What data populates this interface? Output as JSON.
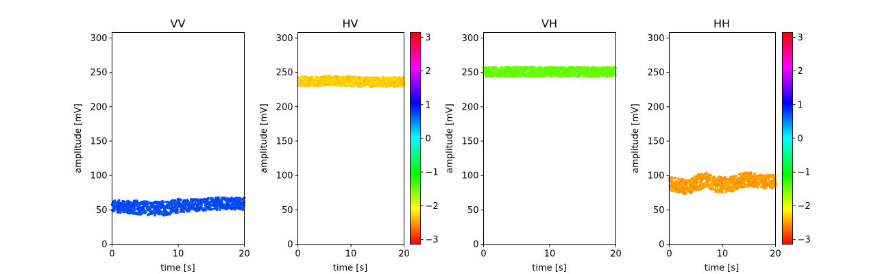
{
  "chart_data": [
    {
      "type": "scatter",
      "title": "VV",
      "xlabel": "time [s]",
      "ylabel": "amplitude [mV]",
      "xlim": [
        0,
        20
      ],
      "ylim": [
        0,
        308
      ],
      "xticks": [
        "0",
        "10",
        "20"
      ],
      "yticks": [
        "0",
        "50",
        "100",
        "150",
        "200",
        "250",
        "300"
      ],
      "phase": 0.75,
      "series": [
        {
          "x": [
            0,
            1,
            2,
            3,
            4,
            5,
            6,
            7,
            8,
            9,
            10,
            11,
            12,
            13,
            14,
            15,
            16,
            17,
            18,
            19,
            20
          ],
          "y": [
            55,
            55,
            54,
            54,
            53,
            53,
            52,
            52,
            53,
            54,
            56,
            56,
            57,
            57,
            58,
            58,
            59,
            59,
            59,
            59,
            59
          ],
          "spread": [
            9,
            9,
            9,
            10,
            10,
            10,
            10,
            10,
            11,
            10,
            10,
            9,
            9,
            9,
            9,
            9,
            9,
            9,
            9,
            9,
            9
          ]
        }
      ],
      "colorbar": false
    },
    {
      "type": "scatter",
      "title": "HV",
      "xlabel": "time [s]",
      "ylabel": "amplitude [mV]",
      "xlim": [
        0,
        20
      ],
      "ylim": [
        0,
        308
      ],
      "xticks": [
        "0",
        "10",
        "20"
      ],
      "yticks": [
        "0",
        "50",
        "100",
        "150",
        "200",
        "250",
        "300"
      ],
      "phase": -2.3,
      "series": [
        {
          "x": [
            0,
            2,
            4,
            6,
            8,
            10,
            12,
            14,
            16,
            18,
            20
          ],
          "y": [
            237,
            237,
            237,
            238,
            237,
            237,
            236,
            236,
            236,
            236,
            236
          ],
          "spread": [
            7,
            7,
            7,
            7,
            7,
            7,
            7,
            7,
            7,
            7,
            7
          ]
        }
      ],
      "colorbar": true,
      "colorbar_ticks": [
        "3",
        "2",
        "1",
        "0",
        "−1",
        "−2",
        "−3"
      ],
      "colorbar_range": [
        -3.14,
        3.14
      ]
    },
    {
      "type": "scatter",
      "title": "VH",
      "xlabel": "time [s]",
      "ylabel": "amplitude [mV]",
      "xlim": [
        0,
        20
      ],
      "ylim": [
        0,
        308
      ],
      "xticks": [
        "0",
        "10",
        "20"
      ],
      "yticks": [
        "0",
        "50",
        "100",
        "150",
        "200",
        "250",
        "300"
      ],
      "phase": -1.45,
      "series": [
        {
          "x": [
            0,
            2,
            4,
            6,
            8,
            10,
            12,
            14,
            16,
            18,
            20
          ],
          "y": [
            251,
            251,
            251,
            251,
            251,
            251,
            251,
            251,
            251,
            251,
            251
          ],
          "spread": [
            7,
            7,
            7,
            7,
            7,
            7,
            7,
            7,
            7,
            7,
            7
          ]
        }
      ],
      "colorbar": false
    },
    {
      "type": "scatter",
      "title": "HH",
      "xlabel": "time [s]",
      "ylabel": "amplitude [mV]",
      "xlim": [
        0,
        20
      ],
      "ylim": [
        0,
        308
      ],
      "xticks": [
        "0",
        "10",
        "20"
      ],
      "yticks": [
        "0",
        "50",
        "100",
        "150",
        "200",
        "250",
        "300"
      ],
      "phase": -2.5,
      "series": [
        {
          "x": [
            0,
            1,
            2,
            3,
            4,
            5,
            6,
            7,
            8,
            9,
            10,
            11,
            12,
            13,
            14,
            15,
            16,
            17,
            18,
            19,
            20
          ],
          "y": [
            88,
            87,
            85,
            84,
            84,
            88,
            92,
            94,
            90,
            86,
            87,
            86,
            88,
            92,
            94,
            95,
            93,
            91,
            91,
            91,
            91
          ],
          "spread": [
            10,
            10,
            10,
            11,
            11,
            12,
            12,
            10,
            11,
            12,
            12,
            11,
            11,
            11,
            11,
            11,
            10,
            10,
            10,
            10,
            10
          ]
        }
      ],
      "colorbar": true,
      "colorbar_ticks": [
        "3",
        "2",
        "1",
        "0",
        "−1",
        "−2",
        "−3"
      ],
      "colorbar_range": [
        -3.14,
        3.14
      ]
    }
  ]
}
